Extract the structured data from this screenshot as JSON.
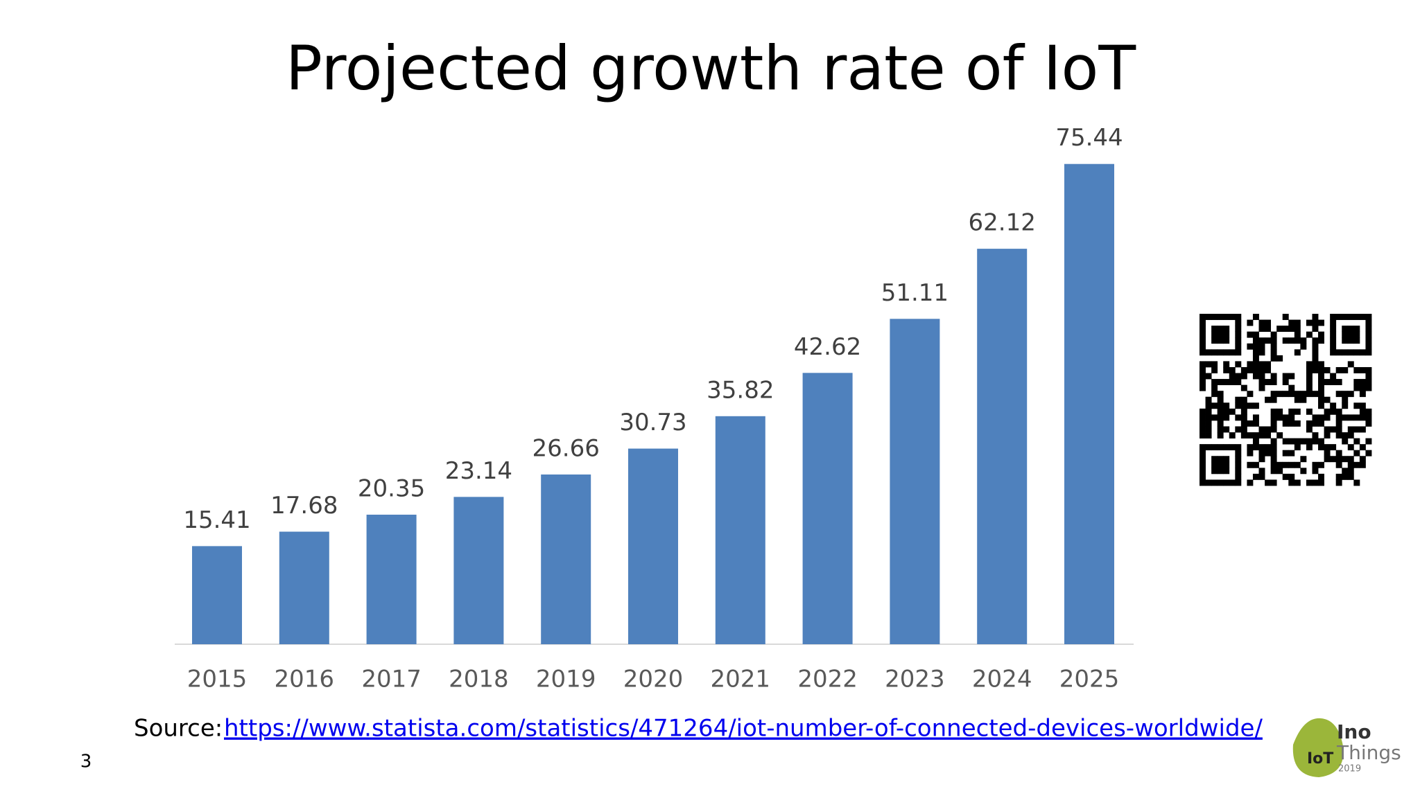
{
  "chart_data": {
    "type": "bar",
    "title": "Projected growth rate of IoT",
    "categories": [
      "2015",
      "2016",
      "2017",
      "2018",
      "2019",
      "2020",
      "2021",
      "2022",
      "2023",
      "2024",
      "2025"
    ],
    "values": [
      15.41,
      17.68,
      20.35,
      23.14,
      26.66,
      30.73,
      35.82,
      42.62,
      51.11,
      62.12,
      75.44
    ],
    "color": "#4f81bd"
  },
  "source": {
    "label": "Source:",
    "url": "https://www.statista.com/statistics/471264/iot-number-of-connected-devices-worldwide/"
  },
  "page_number": "3",
  "logo": {
    "name": "Ino",
    "name2": "Things",
    "year": "2019",
    "badge": "IoT"
  }
}
